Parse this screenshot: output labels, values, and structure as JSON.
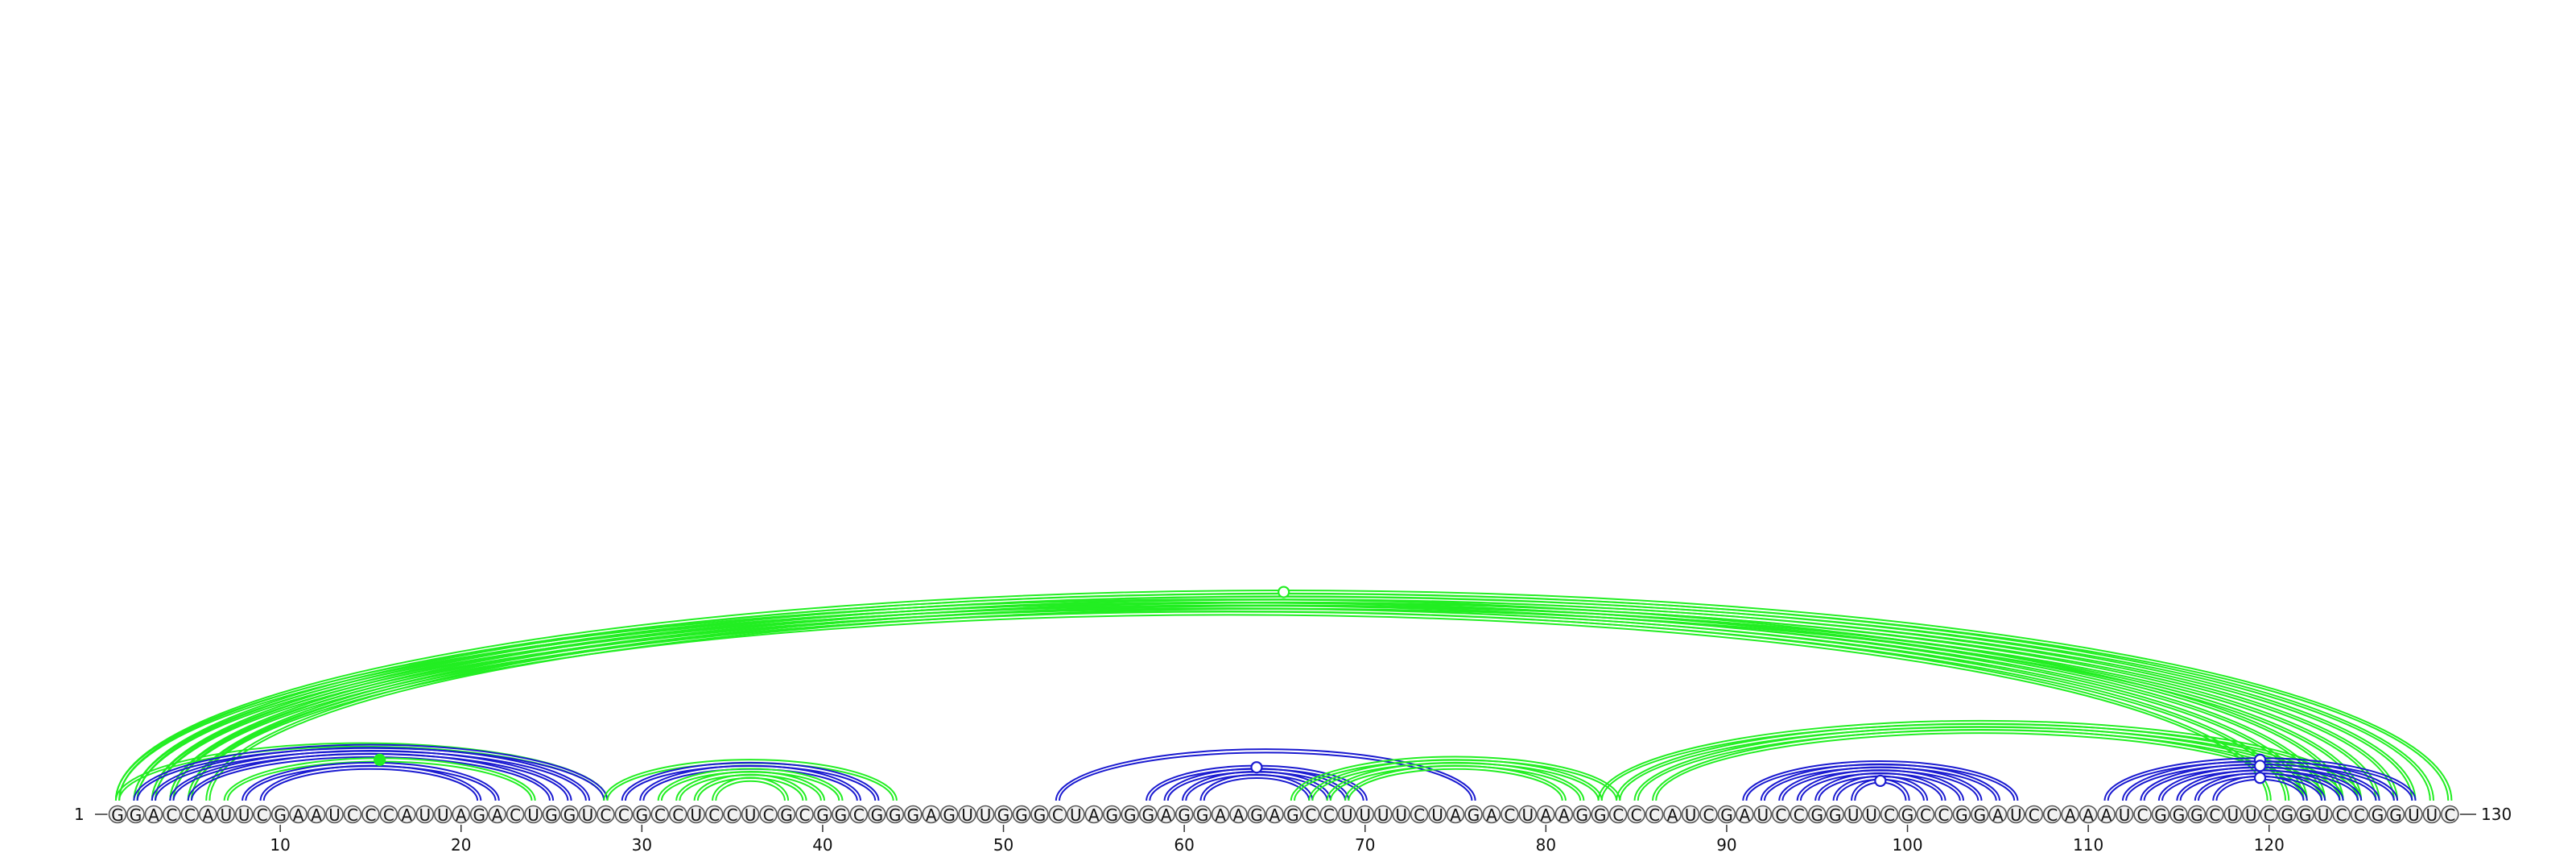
{
  "diagram": {
    "type": "rna-arc-diagram",
    "sequence": "GGACCAUUCGAAUCCCAUUAGACUGGUCCGCCUCCUCGCGGCGGGAGUUGGGCUAGGGAGGAAGAGCCUUUUCUAGACUAAGGCCCAUCGAUCCGGUUCGCCGGAUCCAAAUCGGGCUUCGGUCCGGUUC",
    "start_label": "1",
    "end_label": "130",
    "tick_positions": [
      10,
      20,
      30,
      40,
      50,
      60,
      70,
      80,
      90,
      100,
      110,
      120
    ],
    "colors": {
      "green": "#22ee22",
      "blue": "#1a1ad0"
    },
    "arcs": [
      {
        "i": 1,
        "j": 130,
        "color": "green",
        "double": true
      },
      {
        "i": 2,
        "j": 129,
        "color": "green",
        "double": true
      },
      {
        "i": 3,
        "j": 128,
        "color": "green",
        "double": true
      },
      {
        "i": 4,
        "j": 127,
        "color": "green",
        "double": true
      },
      {
        "i": 5,
        "j": 126,
        "color": "green",
        "double": true
      },
      {
        "i": 6,
        "j": 125,
        "color": "green",
        "double": true
      },
      {
        "i": 1,
        "j": 124,
        "color": "green",
        "double": true
      },
      {
        "i": 2,
        "j": 123,
        "color": "green",
        "double": true
      },
      {
        "i": 3,
        "j": 122,
        "color": "green",
        "double": true
      },
      {
        "i": 4,
        "j": 121,
        "color": "green",
        "double": true
      },
      {
        "i": 5,
        "j": 120,
        "color": "green",
        "double": true
      },
      {
        "i": 1,
        "j": 28,
        "color": "green",
        "double": true
      },
      {
        "i": 2,
        "j": 28,
        "color": "blue",
        "double": true
      },
      {
        "i": 3,
        "j": 27,
        "color": "blue",
        "double": true
      },
      {
        "i": 4,
        "j": 26,
        "color": "blue",
        "double": true
      },
      {
        "i": 5,
        "j": 25,
        "color": "blue",
        "double": true
      },
      {
        "i": 7,
        "j": 24,
        "color": "green",
        "double": true
      },
      {
        "i": 8,
        "j": 22,
        "color": "blue",
        "double": true
      },
      {
        "i": 9,
        "j": 21,
        "color": "blue",
        "double": true
      },
      {
        "i": 28,
        "j": 44,
        "color": "green",
        "double": true
      },
      {
        "i": 29,
        "j": 43,
        "color": "blue",
        "double": true
      },
      {
        "i": 30,
        "j": 42,
        "color": "blue",
        "double": true
      },
      {
        "i": 31,
        "j": 41,
        "color": "green",
        "double": true
      },
      {
        "i": 32,
        "j": 40,
        "color": "green",
        "double": true
      },
      {
        "i": 33,
        "j": 39,
        "color": "green",
        "double": true
      },
      {
        "i": 34,
        "j": 38,
        "color": "green",
        "double": true
      },
      {
        "i": 53,
        "j": 76,
        "color": "blue",
        "double": true
      },
      {
        "i": 58,
        "j": 70,
        "color": "blue",
        "double": true
      },
      {
        "i": 59,
        "j": 69,
        "color": "blue",
        "double": true
      },
      {
        "i": 60,
        "j": 68,
        "color": "blue",
        "double": true
      },
      {
        "i": 61,
        "j": 67,
        "color": "blue",
        "double": true
      },
      {
        "i": 66,
        "j": 84,
        "color": "green",
        "double": true
      },
      {
        "i": 67,
        "j": 83,
        "color": "green",
        "double": true
      },
      {
        "i": 68,
        "j": 82,
        "color": "green",
        "double": true
      },
      {
        "i": 69,
        "j": 81,
        "color": "green",
        "double": true
      },
      {
        "i": 83,
        "j": 125,
        "color": "green",
        "double": true
      },
      {
        "i": 84,
        "j": 124,
        "color": "green",
        "double": true
      },
      {
        "i": 85,
        "j": 123,
        "color": "green",
        "double": true
      },
      {
        "i": 86,
        "j": 122,
        "color": "green",
        "double": true
      },
      {
        "i": 91,
        "j": 106,
        "color": "blue",
        "double": true
      },
      {
        "i": 92,
        "j": 105,
        "color": "blue",
        "double": true
      },
      {
        "i": 93,
        "j": 104,
        "color": "blue",
        "double": true
      },
      {
        "i": 94,
        "j": 103,
        "color": "blue",
        "double": true
      },
      {
        "i": 95,
        "j": 102,
        "color": "blue",
        "double": true
      },
      {
        "i": 96,
        "j": 101,
        "color": "blue",
        "double": true
      },
      {
        "i": 97,
        "j": 100,
        "color": "blue",
        "double": true
      },
      {
        "i": 111,
        "j": 128,
        "color": "blue",
        "double": true
      },
      {
        "i": 112,
        "j": 127,
        "color": "blue",
        "double": true
      },
      {
        "i": 113,
        "j": 126,
        "color": "blue",
        "double": true
      },
      {
        "i": 114,
        "j": 125,
        "color": "blue",
        "double": true
      },
      {
        "i": 115,
        "j": 124,
        "color": "blue",
        "double": true
      },
      {
        "i": 116,
        "j": 123,
        "color": "blue",
        "double": true
      },
      {
        "i": 117,
        "j": 122,
        "color": "blue",
        "double": true
      }
    ],
    "markers": [
      {
        "i": 1,
        "j": 130,
        "color": "green",
        "filled": false
      },
      {
        "i": 7,
        "j": 24,
        "color": "green",
        "filled": true
      },
      {
        "i": 58,
        "j": 70,
        "color": "blue",
        "filled": false
      },
      {
        "i": 97,
        "j": 100,
        "color": "blue",
        "filled": false
      },
      {
        "i": 111,
        "j": 128,
        "color": "blue",
        "filled": false
      },
      {
        "i": 113,
        "j": 126,
        "color": "blue",
        "filled": false
      },
      {
        "i": 117,
        "j": 122,
        "color": "blue",
        "filled": false
      }
    ]
  }
}
